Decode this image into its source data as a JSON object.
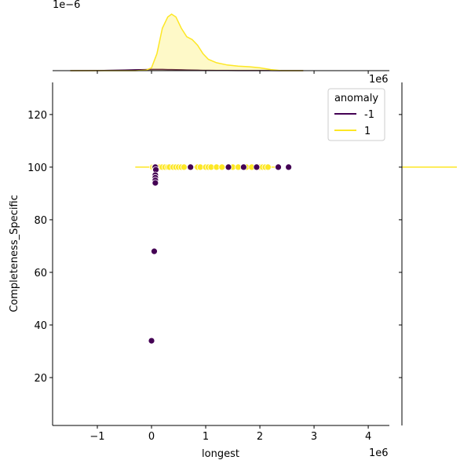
{
  "chart_data": {
    "type": "scatter",
    "xlabel": "longest",
    "ylabel": "Completeness_Specific",
    "x_offset_label": "1e6",
    "top_offset_label": "1e−6",
    "xlim": [
      -1.826,
      4.39
    ],
    "ylim": [
      1.8,
      132.2
    ],
    "xticks": [
      {
        "value": -1,
        "label": "−1"
      },
      0,
      1,
      2,
      3,
      4
    ],
    "yticks": [
      20,
      40,
      60,
      80,
      100,
      120
    ],
    "legend_title": "anomaly",
    "legend": "upper right",
    "series": [
      {
        "name": "-1",
        "color": "#440154",
        "x": [
          0.07,
          0.72,
          1.42,
          1.7,
          1.94,
          2.34,
          2.53,
          0.08,
          0.07,
          0.07,
          0.07,
          0.07,
          0.05,
          0.0
        ],
        "values": [
          100,
          100,
          100,
          100,
          100,
          100,
          100,
          99,
          97,
          96,
          95,
          94,
          68,
          34
        ]
      },
      {
        "name": "1",
        "color": "#fde725",
        "x": [
          0.02,
          0.05,
          0.08,
          0.12,
          0.16,
          0.2,
          0.25,
          0.3,
          0.33,
          0.4,
          0.45,
          0.5,
          0.55,
          0.6,
          0.85,
          0.9,
          1.0,
          1.05,
          1.1,
          1.2,
          1.3,
          1.5,
          1.6,
          1.75,
          1.85,
          2.0,
          2.05,
          2.1,
          2.15
        ],
        "values": [
          100,
          100,
          100,
          100,
          100,
          100,
          100,
          100,
          100,
          100,
          100,
          100,
          100,
          100,
          100,
          100,
          100,
          100,
          100,
          100,
          100,
          100,
          100,
          100,
          100,
          100,
          100,
          100,
          100
        ]
      }
    ],
    "main_line": {
      "color": "#fde725",
      "x": [
        -0.3,
        2.35
      ],
      "values": [
        100,
        100
      ]
    },
    "marginal_x": {
      "ylim": [
        0,
        1.25
      ],
      "x": [
        -1.5,
        -1.0,
        -0.8,
        -0.5,
        -0.3,
        -0.1,
        0.0,
        0.1,
        0.2,
        0.3,
        0.37,
        0.45,
        0.55,
        0.65,
        0.75,
        0.85,
        0.95,
        1.05,
        1.2,
        1.4,
        1.6,
        1.8,
        2.0,
        2.2,
        2.4,
        2.8
      ],
      "series": [
        {
          "color": "#440154",
          "values": [
            0,
            0.002,
            0.005,
            0.01,
            0.015,
            0.02,
            0.022,
            0.022,
            0.022,
            0.02,
            0.02,
            0.018,
            0.015,
            0.012,
            0.01,
            0.008,
            0.006,
            0.005,
            0.004,
            0.003,
            0.002,
            0.002,
            0.001,
            0.001,
            0,
            0
          ]
        },
        {
          "color": "#fde725",
          "values": [
            0,
            0,
            0,
            0,
            0,
            0.01,
            0.05,
            0.3,
            0.75,
            0.95,
            1.0,
            0.95,
            0.75,
            0.6,
            0.55,
            0.45,
            0.3,
            0.2,
            0.14,
            0.1,
            0.08,
            0.07,
            0.05,
            0.02,
            0,
            0
          ]
        }
      ]
    },
    "marginal_y": {
      "color": "#fde725",
      "y": 100
    }
  }
}
